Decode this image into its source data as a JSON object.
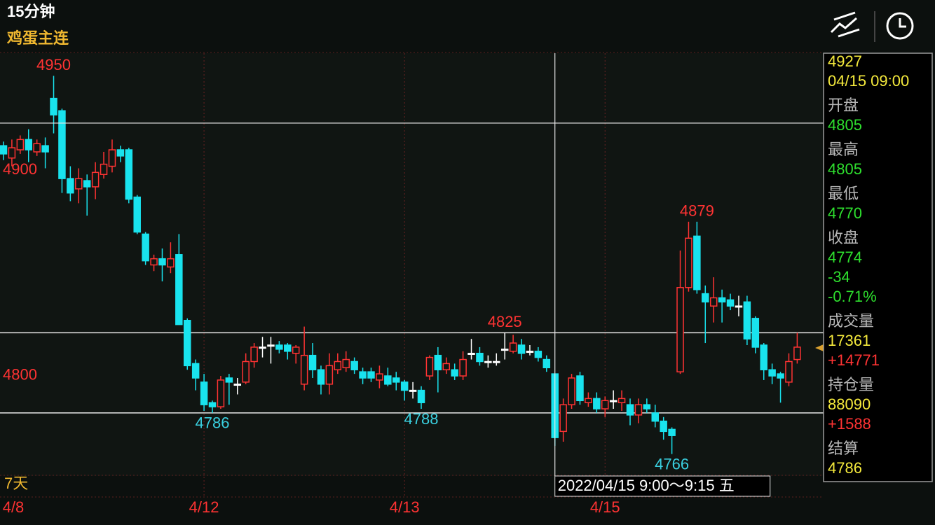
{
  "header": {
    "title": "15分钟",
    "subtitle": "鸡蛋主连"
  },
  "range_label": "7天",
  "chart_data": {
    "type": "candlestick",
    "categories": [
      "4/8",
      null,
      null,
      null,
      null,
      null,
      null,
      null,
      null,
      null,
      null,
      null,
      null,
      null,
      null,
      null,
      null,
      null,
      null,
      null,
      null,
      null,
      null,
      null,
      "4/12",
      null,
      null,
      null,
      null,
      null,
      null,
      null,
      null,
      null,
      null,
      null,
      null,
      null,
      null,
      null,
      null,
      null,
      null,
      null,
      null,
      null,
      null,
      null,
      "4/13",
      null,
      null,
      null,
      null,
      null,
      null,
      null,
      null,
      null,
      null,
      null,
      null,
      null,
      null,
      null,
      null,
      null,
      null,
      null,
      null,
      null,
      null,
      null,
      "4/15",
      null,
      null,
      null,
      null,
      null,
      null,
      null,
      null,
      null,
      null,
      null,
      null,
      null,
      null,
      null,
      null,
      null,
      null,
      null,
      null,
      null,
      null,
      null
    ],
    "open": [
      4916,
      4910,
      4914,
      4919,
      4913,
      4916,
      4939,
      4933,
      4900,
      4895,
      4899,
      4896,
      4902,
      4906,
      4914,
      4914,
      4891,
      4873,
      4858,
      4861,
      4857,
      4863,
      4831,
      4810,
      4801,
      4791,
      4789,
      4803,
      4800,
      4801,
      4811,
      4818,
      4819,
      4819,
      4819,
      4815,
      4800,
      4814,
      4807,
      4800,
      4807,
      4808,
      4811,
      4806,
      4806,
      4802,
      4804,
      4803,
      4801,
      4797,
      4797,
      4804,
      4814,
      4807,
      4807,
      4804,
      4815,
      4815,
      4811,
      4811,
      4817,
      4816,
      4819,
      4816,
      4816,
      4812,
      4805,
      4777,
      4790,
      4804,
      4791,
      4793,
      4788,
      4792,
      4791,
      4790,
      4785,
      4790,
      4786,
      4782,
      4778,
      4806,
      4847,
      4872,
      4844,
      4838,
      4842,
      4841,
      4838,
      4840,
      4832,
      4819,
      4807,
      4805,
      4801,
      4812
    ],
    "high": [
      4918,
      4919,
      4921,
      4924,
      4919,
      4920,
      4950,
      4934,
      4906,
      4905,
      4902,
      4908,
      4913,
      4919,
      4916,
      4915,
      4892,
      4874,
      4863,
      4866,
      4869,
      4873,
      4832,
      4812,
      4805,
      4792,
      4804,
      4805,
      4803,
      4815,
      4820,
      4823,
      4823,
      4821,
      4820,
      4819,
      4828,
      4820,
      4809,
      4815,
      4815,
      4816,
      4813,
      4808,
      4808,
      4809,
      4808,
      4806,
      4802,
      4801,
      4799,
      4814,
      4818,
      4813,
      4810,
      4816,
      4822,
      4818,
      4814,
      4815,
      4825,
      4824,
      4822,
      4819,
      4818,
      4814,
      4805,
      4793,
      4805,
      4806,
      4796,
      4796,
      4794,
      4797,
      4797,
      4793,
      4793,
      4793,
      4790,
      4784,
      4779,
      4865,
      4879,
      4879,
      4848,
      4852,
      4846,
      4844,
      4843,
      4843,
      4833,
      4820,
      4810,
      4806,
      4815,
      4825
    ],
    "low": [
      4909,
      4906,
      4912,
      4908,
      4911,
      4905,
      4922,
      4893,
      4889,
      4888,
      4882,
      4890,
      4900,
      4903,
      4908,
      4888,
      4873,
      4858,
      4855,
      4850,
      4854,
      4829,
      4807,
      4797,
      4787,
      4786,
      4788,
      4790,
      4795,
      4800,
      4808,
      4813,
      4810,
      4815,
      4812,
      4810,
      4797,
      4803,
      4795,
      4795,
      4805,
      4806,
      4805,
      4800,
      4801,
      4798,
      4799,
      4797,
      4792,
      4793,
      4788,
      4802,
      4796,
      4805,
      4802,
      4802,
      4812,
      4809,
      4808,
      4809,
      4812,
      4815,
      4812,
      4814,
      4811,
      4806,
      4770,
      4772,
      4788,
      4790,
      4789,
      4786,
      4784,
      4788,
      4787,
      4780,
      4781,
      4786,
      4779,
      4773,
      4766,
      4805,
      4845,
      4844,
      4820,
      4830,
      4830,
      4836,
      4833,
      4819,
      4815,
      4802,
      4800,
      4791,
      4799,
      4810
    ],
    "close": [
      4912,
      4915,
      4919,
      4914,
      4917,
      4913,
      4931,
      4900,
      4893,
      4900,
      4896,
      4903,
      4907,
      4914,
      4911,
      4890,
      4874,
      4860,
      4861,
      4858,
      4861,
      4829,
      4809,
      4803,
      4790,
      4789,
      4802,
      4801,
      4800,
      4811,
      4818,
      4818,
      4819,
      4817,
      4816,
      4818,
      4814,
      4807,
      4800,
      4809,
      4811,
      4812,
      4807,
      4803,
      4803,
      4805,
      4800,
      4801,
      4797,
      4797,
      4791,
      4813,
      4807,
      4810,
      4804,
      4812,
      4815,
      4811,
      4811,
      4811,
      4817,
      4820,
      4815,
      4816,
      4813,
      4808,
      4774,
      4790,
      4803,
      4792,
      4793,
      4788,
      4792,
      4792,
      4793,
      4785,
      4790,
      4788,
      4782,
      4777,
      4775,
      4847,
      4871,
      4846,
      4840,
      4842,
      4840,
      4838,
      4838,
      4822,
      4818,
      4807,
      4804,
      4803,
      4811,
      4818
    ],
    "up_color": "#ff3333",
    "down_color": "#19e3ee",
    "flat_color": "#ffffff",
    "ylim": [
      4756,
      4961
    ],
    "yticks": [
      4800,
      4900
    ],
    "grid": false,
    "annotations": [
      {
        "value": 4950,
        "index": 6,
        "side": "high"
      },
      {
        "value": 4786,
        "index": 25,
        "side": "low"
      },
      {
        "value": 4788,
        "index": 50,
        "side": "low"
      },
      {
        "value": 4825,
        "index": 60,
        "side": "high"
      },
      {
        "value": 4879,
        "index": 83,
        "side": "high"
      },
      {
        "value": 4766,
        "index": 80,
        "side": "low"
      }
    ],
    "reference_lines": [
      4825,
      4786
    ],
    "crosshair": {
      "index": 66,
      "price": 4927,
      "label": "2022/04/15 9:00～9:15 五"
    }
  },
  "info": {
    "price": 4927,
    "time": "04/15 09:00",
    "fields": [
      {
        "label": "开盘",
        "values": [
          4805
        ],
        "colors": [
          "#2ee02e"
        ]
      },
      {
        "label": "最高",
        "values": [
          4805
        ],
        "colors": [
          "#2ee02e"
        ]
      },
      {
        "label": "最低",
        "values": [
          4770
        ],
        "colors": [
          "#2ee02e"
        ]
      },
      {
        "label": "收盘",
        "values": [
          4774,
          -34,
          "-0.71%"
        ],
        "colors": [
          "#2ee02e",
          "#2ee02e",
          "#2ee02e"
        ]
      },
      {
        "label": "成交量",
        "values": [
          17361,
          "+14771"
        ],
        "colors": [
          "#f5ea3c",
          "#ff3333"
        ]
      },
      {
        "label": "持仓量",
        "values": [
          88090,
          "+1588"
        ],
        "colors": [
          "#f5ea3c",
          "#ff3333"
        ]
      },
      {
        "label": "结算",
        "values": [
          4786
        ],
        "colors": [
          "#f5ea3c"
        ]
      }
    ]
  }
}
